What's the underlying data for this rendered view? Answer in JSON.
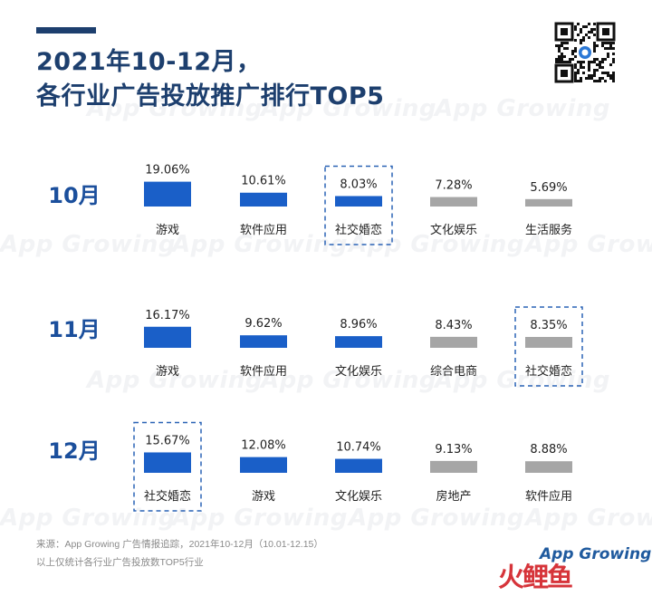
{
  "title_line1": "2021年10-12月，",
  "title_line2": "各行业广告投放推广排行TOP5",
  "watermark_text": "App Growing",
  "footer": {
    "source": "来源：App Growing 广告情报追踪，2021年10-12月（10.01-12.15）",
    "note": "以上仅统计各行业广告投放数TOP5行业"
  },
  "brand": {
    "app": "App Growing",
    "cn": "火鲤鱼"
  },
  "colors": {
    "title": "#1d3f6e",
    "month_label": "#1b4f9c",
    "bar_blue": "#1a5fc8",
    "bar_gray": "#a6a6a6",
    "highlight_border": "#2a63b5"
  },
  "chart_data": [
    {
      "type": "bar",
      "month": "10月",
      "categories": [
        "游戏",
        "软件应用",
        "社交婚恋",
        "文化娱乐",
        "生活服务"
      ],
      "values": [
        19.06,
        10.61,
        8.03,
        7.28,
        5.69
      ],
      "value_labels": [
        "19.06%",
        "10.61%",
        "8.03%",
        "7.28%",
        "5.69%"
      ],
      "colors": [
        "blue",
        "blue",
        "blue",
        "gray",
        "gray"
      ],
      "highlight": "社交婚恋"
    },
    {
      "type": "bar",
      "month": "11月",
      "categories": [
        "游戏",
        "软件应用",
        "文化娱乐",
        "综合电商",
        "社交婚恋"
      ],
      "values": [
        16.17,
        9.62,
        8.96,
        8.43,
        8.35
      ],
      "value_labels": [
        "16.17%",
        "9.62%",
        "8.96%",
        "8.43%",
        "8.35%"
      ],
      "colors": [
        "blue",
        "blue",
        "blue",
        "gray",
        "gray"
      ],
      "highlight": "社交婚恋"
    },
    {
      "type": "bar",
      "month": "12月",
      "categories": [
        "社交婚恋",
        "游戏",
        "文化娱乐",
        "房地产",
        "软件应用"
      ],
      "values": [
        15.67,
        12.08,
        10.74,
        9.13,
        8.88
      ],
      "value_labels": [
        "15.67%",
        "12.08%",
        "10.74%",
        "9.13%",
        "8.88%"
      ],
      "colors": [
        "blue",
        "blue",
        "blue",
        "gray",
        "gray"
      ],
      "highlight": "社交婚恋"
    }
  ]
}
